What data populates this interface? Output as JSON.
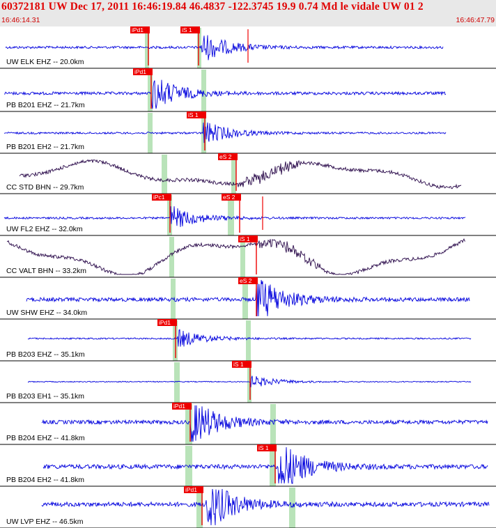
{
  "header": {
    "title": "60372181 UW Dec 17, 2011 16:46:19.84   46.4837 -122.3745 19.9 0.74 Md le vidale UW 01   2",
    "start_time": "16:46:14.31",
    "end_time": "16:46:47.79"
  },
  "colors": {
    "header_bg": "#e8e8e8",
    "header_text": "#e00000",
    "trace_blue": "#0000dd",
    "trace_purple": "#2a0a4a",
    "pick_box": "#ee0000",
    "theoretical_band": "#b9e3b9",
    "separator": "#000000"
  },
  "chart_data": {
    "type": "seismogram",
    "time_range": [
      "16:46:14.31",
      "16:46:47.79"
    ],
    "traces": [
      {
        "label": "UW ELK EHZ -- 20.0km",
        "picks": [
          "iPd1",
          "iS 1"
        ],
        "color": "blue"
      },
      {
        "label": "PB B201 EHZ -- 21.7km",
        "picks": [
          "iPd1"
        ],
        "color": "blue"
      },
      {
        "label": "PB B201 EH2 -- 21.7km",
        "picks": [
          "iS 1"
        ],
        "color": "blue"
      },
      {
        "label": "CC STD BHN -- 29.7km",
        "picks": [
          "eS 2"
        ],
        "color": "purple"
      },
      {
        "label": "UW FL2 EHZ -- 32.0km",
        "picks": [
          "iPc1",
          "eS 2"
        ],
        "color": "blue"
      },
      {
        "label": "CC VALT BHN -- 33.2km",
        "picks": [
          "iS 1"
        ],
        "color": "purple"
      },
      {
        "label": "UW SHW EHZ -- 34.0km",
        "picks": [
          "eS 2"
        ],
        "color": "blue"
      },
      {
        "label": "PB B203 EHZ -- 35.1km",
        "picks": [
          "iPd1"
        ],
        "color": "blue"
      },
      {
        "label": "PB B203 EH1 -- 35.1km",
        "picks": [
          "iS 1"
        ],
        "color": "blue"
      },
      {
        "label": "PB B204 EHZ -- 41.8km",
        "picks": [
          "iPd1"
        ],
        "color": "blue"
      },
      {
        "label": "PB B204 EH2 -- 41.8km",
        "picks": [
          "iS 1"
        ],
        "color": "blue"
      },
      {
        "label": "UW LVP EHZ -- 46.5km",
        "picks": [
          "iPd1"
        ],
        "color": "blue"
      }
    ]
  }
}
